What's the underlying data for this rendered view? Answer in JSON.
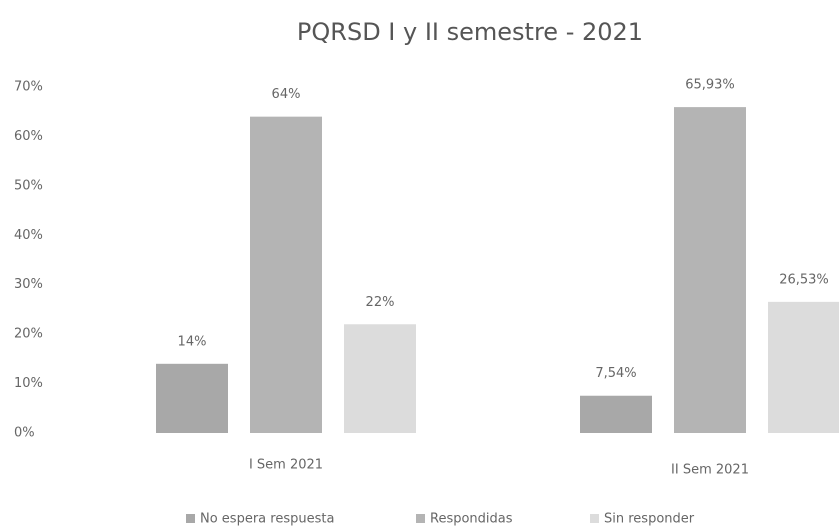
{
  "chart_data": {
    "type": "bar",
    "title": "PQRSD I y II semestre - 2021",
    "categories": [
      "I Sem 2021",
      "II Sem 2021"
    ],
    "series": [
      {
        "name": "No espera respuesta",
        "color": "#a8a8a8",
        "values": [
          14,
          7.54
        ],
        "value_labels": [
          "14%",
          "7,54%"
        ]
      },
      {
        "name": "Respondidas",
        "color": "#b4b4b4",
        "values": [
          64,
          65.93
        ],
        "value_labels": [
          "64%",
          "65,93%"
        ]
      },
      {
        "name": "Sin responder",
        "color": "#dcdcdc",
        "values": [
          22,
          26.53
        ],
        "value_labels": [
          "22%",
          "26,53%"
        ]
      }
    ],
    "ylim": [
      0,
      70
    ],
    "yticks": [
      {
        "value": 0,
        "label": "0%"
      },
      {
        "value": 10,
        "label": "10%"
      },
      {
        "value": 20,
        "label": "20%"
      },
      {
        "value": 30,
        "label": "30%"
      },
      {
        "value": 40,
        "label": "40%"
      },
      {
        "value": 50,
        "label": "50%"
      },
      {
        "value": 60,
        "label": "60%"
      },
      {
        "value": 70,
        "label": "70%"
      }
    ],
    "grid": false,
    "legend": "bottom"
  }
}
